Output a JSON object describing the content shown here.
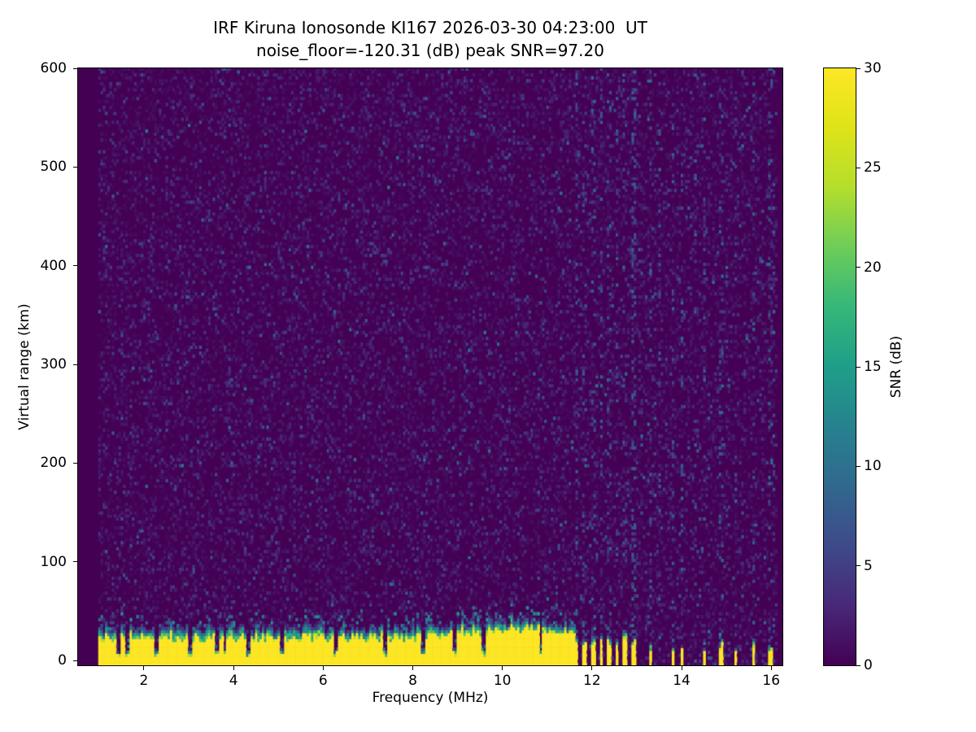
{
  "window": {
    "type": "matplotlib-figure",
    "background": "#ffffff"
  },
  "chart_data": {
    "type": "heatmap",
    "title": "IRF Kiruna Ionosonde KI167 2026-03-30 04:23:00  UT",
    "subtitle": "noise_floor=-120.31 (dB) peak SNR=97.20",
    "station": "IRF Kiruna Ionosonde KI167",
    "timestamp_ut": "2026-03-30 04:23:00 UT",
    "noise_floor_db": -120.31,
    "peak_snr_db": 97.2,
    "xlabel": "Frequency (MHz)",
    "ylabel": "Virtual range (km)",
    "xlim": [
      0.53,
      16.25
    ],
    "ylim": [
      -4.9,
      600
    ],
    "xticks": [
      2,
      4,
      6,
      8,
      10,
      12,
      14,
      16
    ],
    "yticks": [
      0,
      100,
      200,
      300,
      400,
      500,
      600
    ],
    "grid": false,
    "legend": "none",
    "colorbar": {
      "label": "SNR (dB)",
      "min": 0,
      "max": 30,
      "ticks": [
        0,
        5,
        10,
        15,
        20,
        25,
        30
      ],
      "colormap": "viridis",
      "colormap_stops": [
        "#440154",
        "#482878",
        "#3e4a89",
        "#31688e",
        "#26828e",
        "#1f9e89",
        "#35b779",
        "#6dcd59",
        "#b4de2c",
        "#dfe318",
        "#fde725"
      ]
    },
    "seed": 20260330,
    "features": {
      "background_snr_db_range": [
        0,
        8
      ],
      "data_freq_start": 0.97,
      "data_freq_end": 16.12,
      "ground_echo_band": {
        "freq_start": 0.97,
        "freq_end": 11.62,
        "saturated_value_db": 30,
        "saturated_top_km": [
          19,
          27
        ],
        "transition_top_km": [
          26,
          44
        ],
        "hump_center_mhz": 10.4,
        "hump_extra_km": 9
      },
      "notch_freqs_mhz": [
        1.45,
        1.62,
        2.28,
        3.02,
        3.62,
        3.8,
        4.32,
        5.06,
        6.28,
        7.36,
        8.22,
        8.94,
        9.6,
        10.86
      ],
      "stripes": [
        {
          "f": 11.66,
          "w": 0.09,
          "h": 21,
          "s": 0.3
        },
        {
          "f": 11.84,
          "w": 0.09,
          "h": 19,
          "s": 0.25
        },
        {
          "f": 12.02,
          "w": 0.09,
          "h": 20,
          "s": 0.3
        },
        {
          "f": 12.2,
          "w": 0.08,
          "h": 18,
          "s": 0.25
        },
        {
          "f": 12.38,
          "w": 0.08,
          "h": 19,
          "s": 0.3
        },
        {
          "f": 12.56,
          "w": 0.08,
          "h": 17,
          "s": 0.3
        },
        {
          "f": 12.74,
          "w": 0.08,
          "h": 19,
          "s": 0.3
        },
        {
          "f": 12.92,
          "w": 0.08,
          "h": 16,
          "s": 0.55
        },
        {
          "f": 13.3,
          "w": 0.07,
          "h": 11,
          "s": 0.3
        },
        {
          "f": 13.52,
          "w": 0.06,
          "h": 0,
          "s": 0.3
        },
        {
          "f": 13.8,
          "w": 0.07,
          "h": 13,
          "s": 0.3
        },
        {
          "f": 14.0,
          "w": 0.08,
          "h": 15,
          "s": 0.35
        },
        {
          "f": 14.3,
          "w": 0.05,
          "h": 0,
          "s": 0.2
        },
        {
          "f": 14.52,
          "w": 0.06,
          "h": 7,
          "s": 0.25
        },
        {
          "f": 14.88,
          "w": 0.08,
          "h": 14,
          "s": 0.3
        },
        {
          "f": 15.2,
          "w": 0.07,
          "h": 11,
          "s": 0.25
        },
        {
          "f": 15.6,
          "w": 0.07,
          "h": 13,
          "s": 0.3
        },
        {
          "f": 15.97,
          "w": 0.08,
          "h": 12,
          "s": 0.3
        },
        {
          "f": 16.06,
          "w": 0.05,
          "h": 0,
          "s": 0.2
        }
      ]
    }
  }
}
